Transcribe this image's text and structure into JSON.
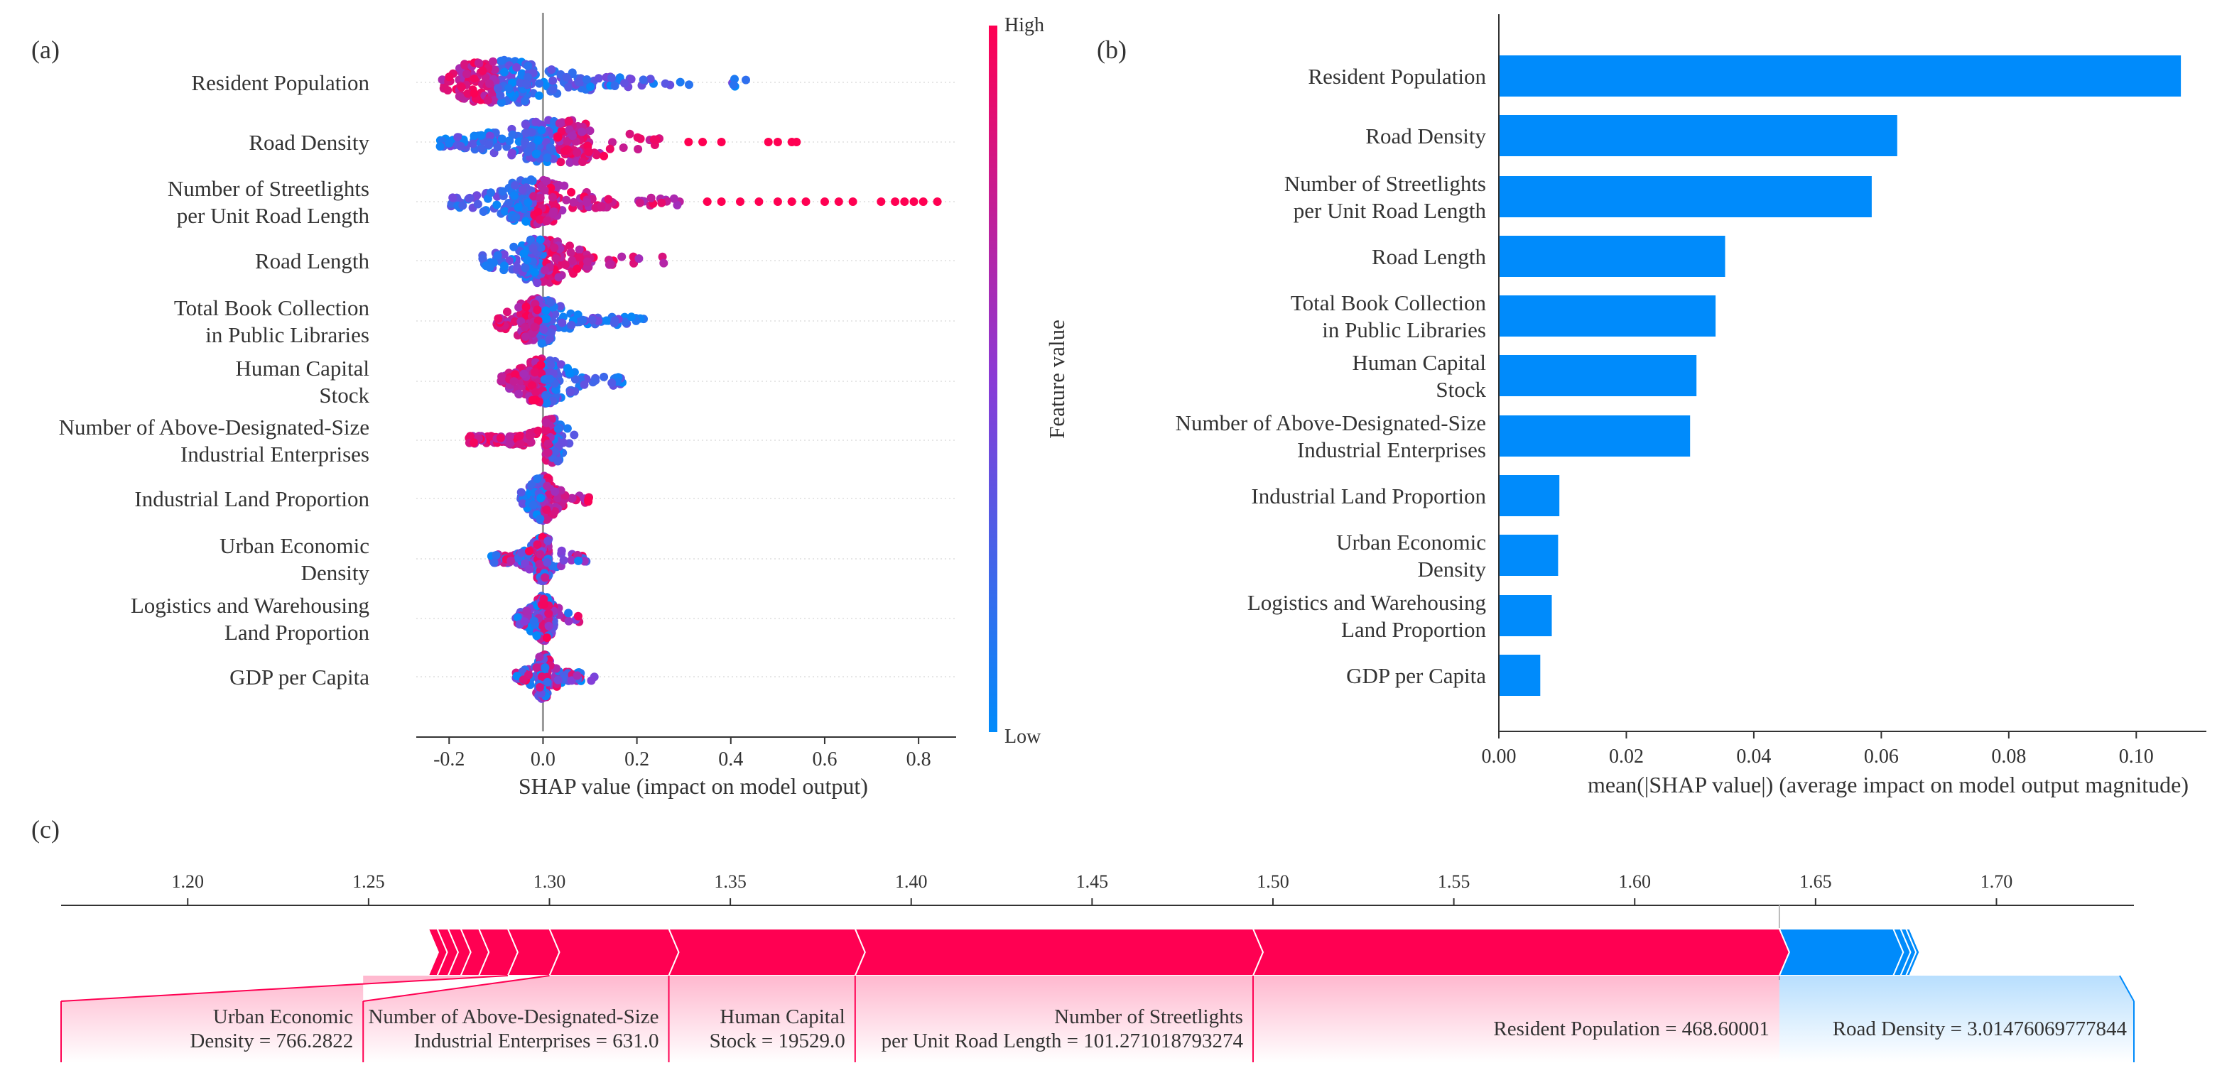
{
  "colors": {
    "high": "#ff0052",
    "low": "#008bfb",
    "mid": "#8a3ad6",
    "axis": "#333333",
    "grid": "#e6e6e6"
  },
  "chart_data": [
    {
      "panel": "(a)",
      "type": "scatter",
      "subtype": "shap-beeswarm",
      "xlabel": "SHAP value (impact on model output)",
      "xlim": [
        -0.27,
        0.88
      ],
      "xticks": [
        "-0.2",
        "0.0",
        "0.2",
        "0.4",
        "0.6",
        "0.8"
      ],
      "tick_values": [
        -0.2,
        0.0,
        0.2,
        0.4,
        0.6,
        0.8
      ],
      "colorbar": {
        "label": "Feature value",
        "high": "High",
        "low": "Low"
      },
      "features": [
        {
          "label": [
            "Resident Population"
          ],
          "min": -0.22,
          "max": 0.46,
          "center": -0.1,
          "spread": 0.16,
          "high_side": "left",
          "outliers": []
        },
        {
          "label": [
            "Road Density"
          ],
          "min": -0.22,
          "max": 0.25,
          "center": 0.03,
          "spread": 0.14,
          "high_side": "right",
          "outliers": [
            0.31,
            0.34,
            0.38,
            0.48,
            0.5,
            0.53,
            0.54
          ]
        },
        {
          "label": [
            "Number of Streetlights",
            "per Unit Road Length"
          ],
          "min": -0.2,
          "max": 0.3,
          "center": -0.02,
          "spread": 0.1,
          "high_side": "right",
          "outliers": [
            0.35,
            0.38,
            0.42,
            0.46,
            0.5,
            0.53,
            0.56,
            0.6,
            0.63,
            0.66,
            0.72,
            0.75,
            0.77,
            0.79,
            0.81,
            0.84
          ]
        },
        {
          "label": [
            "Road Length"
          ],
          "min": -0.13,
          "max": 0.26,
          "center": 0.0,
          "spread": 0.08,
          "high_side": "right",
          "outliers": []
        },
        {
          "label": [
            "Total Book Collection",
            "in Public Libraries"
          ],
          "min": -0.1,
          "max": 0.22,
          "center": -0.01,
          "spread": 0.06,
          "high_side": "left",
          "outliers": []
        },
        {
          "label": [
            "Human Capital",
            "Stock"
          ],
          "min": -0.09,
          "max": 0.17,
          "center": 0.0,
          "spread": 0.06,
          "high_side": "left",
          "outliers": []
        },
        {
          "label": [
            "Number of Above-Designated-Size",
            "Industrial Enterprises"
          ],
          "min": -0.16,
          "max": 0.07,
          "center": 0.02,
          "spread": 0.03,
          "high_side": "left",
          "outliers": []
        },
        {
          "label": [
            "Industrial Land Proportion"
          ],
          "min": -0.05,
          "max": 0.1,
          "center": 0.0,
          "spread": 0.025,
          "high_side": "right",
          "outliers": []
        },
        {
          "label": [
            "Urban Economic",
            "Density"
          ],
          "min": -0.11,
          "max": 0.1,
          "center": 0.0,
          "spread": 0.025,
          "high_side": "mixed",
          "outliers": []
        },
        {
          "label": [
            "Logistics and Warehousing",
            "Land Proportion"
          ],
          "min": -0.06,
          "max": 0.08,
          "center": 0.0,
          "spread": 0.025,
          "high_side": "mixed",
          "outliers": []
        },
        {
          "label": [
            "GDP per Capita"
          ],
          "min": -0.06,
          "max": 0.11,
          "center": 0.0,
          "spread": 0.02,
          "high_side": "mixed",
          "outliers": []
        }
      ]
    },
    {
      "panel": "(b)",
      "type": "bar",
      "orientation": "horizontal",
      "xlabel": "mean(|SHAP value|) (average impact on model output magnitude)",
      "xlim": [
        0,
        0.111
      ],
      "xticks": [
        "0.00",
        "0.02",
        "0.04",
        "0.06",
        "0.08",
        "0.10"
      ],
      "tick_values": [
        0,
        0.02,
        0.04,
        0.06,
        0.08,
        0.1
      ],
      "categories": [
        [
          "Resident Population"
        ],
        [
          "Road Density"
        ],
        [
          "Number of Streetlights",
          "per Unit Road Length"
        ],
        [
          "Road Length"
        ],
        [
          "Total Book Collection",
          "in Public Libraries"
        ],
        [
          "Human Capital",
          "Stock"
        ],
        [
          "Number of Above-Designated-Size",
          "Industrial Enterprises"
        ],
        [
          "Industrial Land Proportion"
        ],
        [
          "Urban Economic",
          "Density"
        ],
        [
          "Logistics and Warehousing",
          "Land Proportion"
        ],
        [
          "GDP per Capita"
        ]
      ],
      "values": [
        0.107,
        0.0625,
        0.0585,
        0.0355,
        0.034,
        0.031,
        0.03,
        0.0095,
        0.0093,
        0.0083,
        0.0065
      ]
    },
    {
      "panel": "(c)",
      "type": "bar",
      "subtype": "shap-force-plot",
      "xlim": [
        1.165,
        1.738
      ],
      "ticks": [
        "1.20",
        "1.25",
        "1.30",
        "1.35",
        "1.40",
        "1.45",
        "1.50",
        "1.55",
        "1.60",
        "1.65",
        "1.70"
      ],
      "tick_values": [
        1.2,
        1.25,
        1.3,
        1.35,
        1.4,
        1.45,
        1.5,
        1.55,
        1.6,
        1.65,
        1.7
      ],
      "output_value": 1.64,
      "positive_segments": [
        {
          "from": 1.2665,
          "to": 1.269
        },
        {
          "from": 1.269,
          "to": 1.272
        },
        {
          "from": 1.272,
          "to": 1.2755
        },
        {
          "from": 1.2755,
          "to": 1.2805
        },
        {
          "from": 1.2805,
          "to": 1.2885
        },
        {
          "from": 1.2885,
          "to": 1.3
        },
        {
          "from": 1.3,
          "to": 1.333
        },
        {
          "from": 1.333,
          "to": 1.3845
        },
        {
          "from": 1.3845,
          "to": 1.4945
        },
        {
          "from": 1.4945,
          "to": 1.64
        }
      ],
      "negative_segments": [
        {
          "from": 1.64,
          "to": 1.6715
        },
        {
          "from": 1.6715,
          "to": 1.6735
        },
        {
          "from": 1.6735,
          "to": 1.675
        },
        {
          "from": 1.675,
          "to": 1.676
        }
      ],
      "labels": [
        {
          "lines": [
            "Urban Economic",
            "Density = 766.2822"
          ],
          "color": "high",
          "from": 1.165,
          "to": 1.2485,
          "anchor": 1.2885
        },
        {
          "lines": [
            "Number of Above-Designated-Size",
            "Industrial Enterprises = 631.0"
          ],
          "color": "high",
          "from": 1.2485,
          "to": 1.333,
          "anchor": 1.3
        },
        {
          "lines": [
            "Human Capital",
            "Stock = 19529.0"
          ],
          "color": "high",
          "from": 1.333,
          "to": 1.3845,
          "anchor": 1.333
        },
        {
          "lines": [
            "Number of Streetlights",
            "per Unit Road Length = 101.271018793274"
          ],
          "color": "high",
          "from": 1.3845,
          "to": 1.4945,
          "anchor": 1.3845
        },
        {
          "lines": [
            "Resident Population = 468.60001"
          ],
          "color": "high",
          "from": 1.4945,
          "to": 1.64,
          "anchor": 1.4945
        },
        {
          "lines": [
            "Road Density = 3.01476069777844"
          ],
          "color": "low",
          "from": 1.64,
          "to": 1.738,
          "anchor": 1.64
        }
      ]
    }
  ]
}
